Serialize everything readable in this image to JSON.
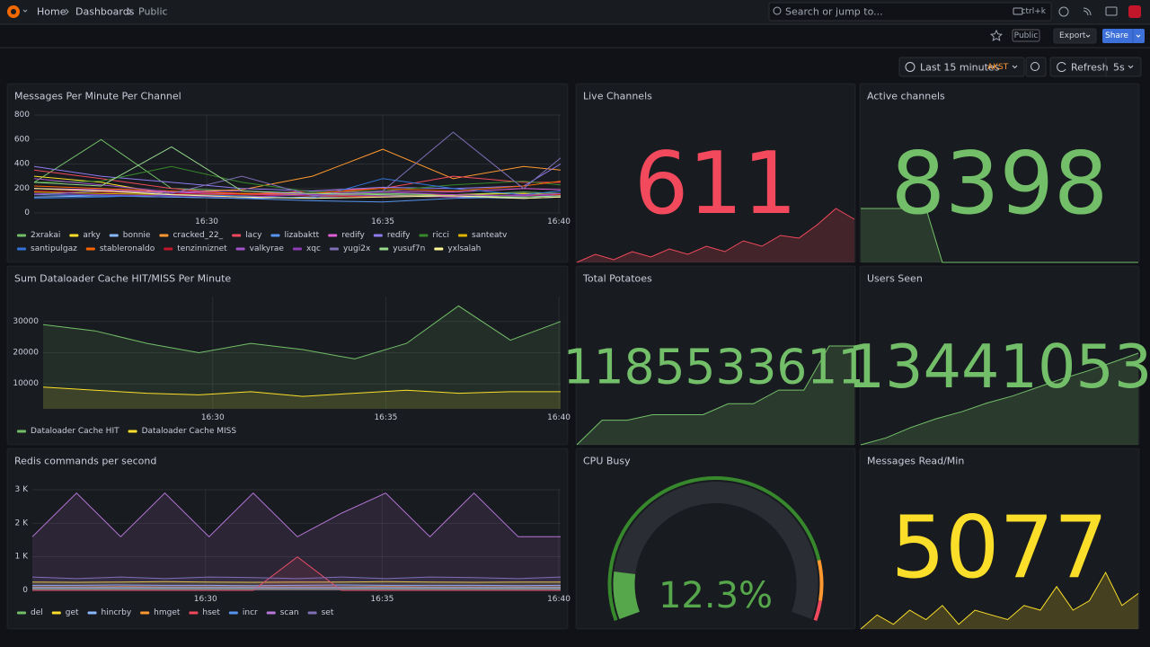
{
  "header": {
    "breadcrumbs": [
      "Home",
      "Dashboards",
      "Public"
    ],
    "search": "Search or jump to...",
    "shortcut": "ctrl+k"
  },
  "toolbar": {
    "badge": "Public",
    "export": "Export",
    "share": "Share",
    "time_range": "Last 15 minutes",
    "timezone": "AKST",
    "refresh": "Refresh",
    "interval": "5s"
  },
  "panels": [
    {
      "title": "Messages Per Minute Per Channel",
      "type": "line",
      "fill": false,
      "x": [
        25.1,
        27,
        29,
        31,
        33,
        35,
        37,
        39,
        40.05
      ],
      "xlim": [
        25.1,
        40.05
      ],
      "xticks": [
        {
          "value": 30,
          "label": "16:30"
        },
        {
          "value": 35,
          "label": "16:35"
        },
        {
          "value": 40,
          "label": "16:40"
        }
      ],
      "ylim": [
        0,
        800
      ],
      "yticks": [
        0,
        200,
        400,
        600,
        800
      ],
      "series": [
        {
          "name": "2xrakai",
          "color": "#73bf69",
          "values": [
            250,
            600,
            200,
            180,
            150,
            160,
            150,
            170,
            160
          ]
        },
        {
          "name": "arky",
          "color": "#fade2a",
          "values": [
            300,
            250,
            150,
            160,
            150,
            140,
            150,
            160,
            150
          ]
        },
        {
          "name": "bonnie",
          "color": "#8ab8ff",
          "values": [
            130,
            140,
            130,
            120,
            130,
            140,
            130,
            120,
            130
          ]
        },
        {
          "name": "cracked_22_",
          "color": "#ff9830",
          "values": [
            200,
            180,
            170,
            190,
            300,
            520,
            280,
            380,
            350
          ]
        },
        {
          "name": "lacy",
          "color": "#f2495c",
          "values": [
            350,
            280,
            200,
            150,
            180,
            200,
            300,
            250,
            250
          ]
        },
        {
          "name": "lizabaktt",
          "color": "#5794f2",
          "values": [
            150,
            140,
            130,
            120,
            100,
            90,
            120,
            130,
            140
          ]
        },
        {
          "name": "redify",
          "color": "#e05fd9",
          "values": [
            200,
            190,
            170,
            150,
            160,
            180,
            170,
            200,
            190
          ]
        },
        {
          "name": "redify",
          "color": "#8f7cf0",
          "values": [
            380,
            300,
            250,
            200,
            180,
            210,
            200,
            220,
            400
          ]
        },
        {
          "name": "ricci",
          "color": "#37872d",
          "values": [
            250,
            260,
            380,
            250,
            170,
            180,
            230,
            260,
            230
          ]
        },
        {
          "name": "santeatv",
          "color": "#e0b400",
          "values": [
            170,
            160,
            150,
            150,
            140,
            140,
            130,
            150,
            150
          ]
        },
        {
          "name": "santipulgaz",
          "color": "#3274d9",
          "values": [
            120,
            130,
            150,
            140,
            120,
            280,
            200,
            150,
            180
          ]
        },
        {
          "name": "stableronaldo",
          "color": "#fa6400",
          "values": [
            220,
            200,
            180,
            160,
            160,
            200,
            180,
            220,
            260
          ]
        },
        {
          "name": "tenzinniznet",
          "color": "#c4162a",
          "values": [
            180,
            170,
            160,
            150,
            140,
            130,
            150,
            140,
            150
          ]
        },
        {
          "name": "valkyrae",
          "color": "#a352cc",
          "values": [
            280,
            230,
            170,
            180,
            150,
            170,
            150,
            140,
            160
          ]
        },
        {
          "name": "xqc",
          "color": "#8f3bb8",
          "values": [
            160,
            150,
            140,
            130,
            150,
            140,
            130,
            150,
            140
          ]
        },
        {
          "name": "yugi2x",
          "color": "#806eb7",
          "values": [
            150,
            180,
            160,
            300,
            140,
            180,
            660,
            200,
            450
          ]
        },
        {
          "name": "yusuf7n",
          "color": "#96d98d",
          "values": [
            250,
            220,
            540,
            180,
            160,
            150,
            140,
            130,
            140
          ]
        },
        {
          "name": "yxlsalah",
          "color": "#fff899",
          "values": [
            200,
            180,
            150,
            130,
            120,
            130,
            140,
            120,
            130
          ]
        }
      ]
    },
    {
      "title": "Live Channels",
      "type": "stat",
      "value": 611,
      "color": "#f2495c",
      "sparkline": [
        560,
        575,
        565,
        580,
        570,
        585,
        575,
        590,
        580,
        600,
        590,
        610,
        605,
        630,
        660,
        640
      ]
    },
    {
      "title": "Active channels",
      "type": "stat",
      "value": 8398,
      "color": "#73bf69",
      "sparkline": [
        8600,
        8600,
        8600,
        8600,
        8600,
        8398,
        8398,
        8398,
        8398,
        8398,
        8398,
        8398,
        8398,
        8398,
        8398,
        8398,
        8398,
        8398
      ]
    },
    {
      "title": "Sum Dataloader Cache HIT/MISS Per Minute",
      "type": "line",
      "fill": true,
      "x": [
        25.1,
        26.6,
        28.1,
        29.6,
        31.1,
        32.6,
        34.1,
        35.6,
        37.1,
        38.6,
        40.05
      ],
      "xlim": [
        25.1,
        40.05
      ],
      "xticks": [
        {
          "value": 30,
          "label": "16:30"
        },
        {
          "value": 35,
          "label": "16:35"
        },
        {
          "value": 40,
          "label": "16:40"
        }
      ],
      "ylim": [
        2000,
        38000
      ],
      "yticks": [
        10000,
        20000,
        30000
      ],
      "series": [
        {
          "name": "Dataloader Cache HIT",
          "color": "#73bf69",
          "values": [
            29000,
            27000,
            23000,
            20000,
            23000,
            21000,
            18000,
            23000,
            35000,
            24000,
            30000
          ]
        },
        {
          "name": "Dataloader Cache MISS",
          "color": "#fade2a",
          "values": [
            9000,
            8000,
            7000,
            6500,
            7500,
            6000,
            7000,
            8000,
            7000,
            7500,
            7500
          ]
        }
      ]
    },
    {
      "title": "Total Potatoes",
      "type": "stat",
      "value": 1185533611,
      "color": "#73bf69",
      "sparkline": [
        1185530000,
        1185530900,
        1185530900,
        1185531100,
        1185531100,
        1185531100,
        1185531500,
        1185531500,
        1185532000,
        1185532000,
        1185533611,
        1185533611
      ]
    },
    {
      "title": "Users Seen",
      "type": "stat",
      "value": 13441053,
      "color": "#73bf69",
      "sparkline": [
        13440000,
        13440080,
        13440200,
        13440300,
        13440380,
        13440480,
        13440560,
        13440660,
        13440760,
        13440850,
        13440950,
        13441053
      ]
    },
    {
      "title": "Redis commands per second",
      "type": "line",
      "fill": true,
      "x": [
        25.1,
        26.35,
        27.6,
        28.85,
        30.1,
        31.35,
        32.6,
        33.85,
        35.1,
        36.35,
        37.6,
        38.85,
        40.05
      ],
      "xlim": [
        25.1,
        40.05
      ],
      "xticks": [
        {
          "value": 30,
          "label": "16:30"
        },
        {
          "value": 35,
          "label": "16:35"
        },
        {
          "value": 40,
          "label": "16:40"
        }
      ],
      "ylim": [
        0,
        3000
      ],
      "yticks": [
        0,
        {
          "value": 1000,
          "label": "1 K"
        },
        {
          "value": 2000,
          "label": "2 K"
        },
        {
          "value": 3000,
          "label": "3 K"
        }
      ],
      "series": [
        {
          "name": "del",
          "color": "#73bf69",
          "values": [
            50,
            50,
            50,
            50,
            50,
            50,
            50,
            50,
            50,
            50,
            50,
            50,
            50
          ]
        },
        {
          "name": "get",
          "color": "#fade2a",
          "values": [
            250,
            240,
            250,
            260,
            250,
            240,
            250,
            250,
            260,
            250,
            240,
            250,
            250
          ]
        },
        {
          "name": "hincrby",
          "color": "#8ab8ff",
          "values": [
            150,
            150,
            160,
            150,
            150,
            140,
            150,
            160,
            150,
            150,
            150,
            140,
            150
          ]
        },
        {
          "name": "hmget",
          "color": "#ff9830",
          "values": [
            100,
            100,
            110,
            100,
            100,
            100,
            100,
            100,
            110,
            100,
            100,
            100,
            100
          ]
        },
        {
          "name": "hset",
          "color": "#f2495c",
          "values": [
            0,
            0,
            0,
            0,
            0,
            0,
            1000,
            0,
            0,
            0,
            0,
            0,
            0
          ]
        },
        {
          "name": "incr",
          "color": "#5794f2",
          "values": [
            80,
            80,
            80,
            80,
            80,
            80,
            80,
            80,
            80,
            80,
            80,
            80,
            80
          ]
        },
        {
          "name": "scan",
          "color": "#b877d9",
          "values": [
            1600,
            2900,
            1600,
            2900,
            1600,
            2900,
            1600,
            2300,
            2900,
            1600,
            2900,
            1600,
            1600
          ]
        },
        {
          "name": "set",
          "color": "#806eb7",
          "values": [
            400,
            350,
            400,
            350,
            400,
            380,
            350,
            400,
            350,
            400,
            380,
            350,
            400
          ]
        }
      ]
    },
    {
      "title": "CPU Busy",
      "type": "gauge",
      "value": 12.3,
      "value_label": "12.3%",
      "min": 0,
      "max": 100,
      "color": "#56a64b",
      "thresholds": [
        {
          "value": 0,
          "color": "#37872d"
        },
        {
          "value": 85,
          "color": "#ff9830"
        },
        {
          "value": 95,
          "color": "#f2495c"
        }
      ]
    },
    {
      "title": "Messages Read/Min",
      "type": "stat",
      "value": 5077,
      "color": "#fade2a",
      "sparkline": [
        4700,
        4850,
        4750,
        4900,
        4800,
        4950,
        4750,
        4900,
        4850,
        4800,
        4950,
        4900,
        5150,
        4900,
        5000,
        5300,
        4950,
        5077
      ]
    }
  ]
}
